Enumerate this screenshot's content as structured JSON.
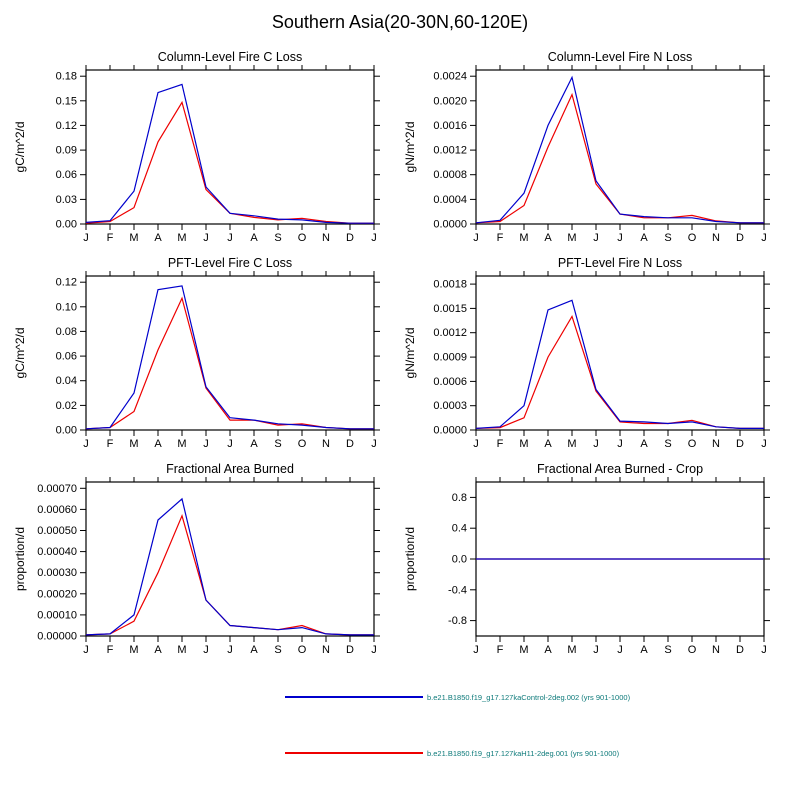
{
  "page_title": "Southern Asia(20-30N,60-120E)",
  "months": [
    "J",
    "F",
    "M",
    "A",
    "M",
    "J",
    "J",
    "A",
    "S",
    "O",
    "N",
    "D",
    "J"
  ],
  "legend": {
    "text_color": "#0d7a7a",
    "entries": [
      {
        "label": "b.e21.B1850.f19_g17.127kaControl-2deg.002 (yrs 901-1000)",
        "color": "#0000cc"
      },
      {
        "label": "b.e21.B1850.f19_g17.127kaH11-2deg.001 (yrs 901-1000)",
        "color": "#ee0000"
      }
    ]
  },
  "chart_data": [
    {
      "type": "line",
      "title": "Column-Level Fire C Loss",
      "xlabel": "",
      "ylabel": "gC/m^2/d",
      "categories": [
        "J",
        "F",
        "M",
        "A",
        "M",
        "J",
        "J",
        "A",
        "S",
        "O",
        "N",
        "D",
        "J"
      ],
      "ylim": [
        0,
        0.1875
      ],
      "ytick_values": [
        0,
        0.03,
        0.06,
        0.09,
        0.12,
        0.15,
        0.18
      ],
      "ytick_labels": [
        "0.00",
        "0.03",
        "0.06",
        "0.09",
        "0.12",
        "0.15",
        "0.18"
      ],
      "series": [
        {
          "name": "b.e21.B1850.f19_g17.127kaControl-2deg.002 (yrs 901-1000)",
          "color": "#0000cc",
          "values": [
            0.002,
            0.004,
            0.04,
            0.16,
            0.17,
            0.045,
            0.013,
            0.01,
            0.006,
            0.005,
            0.002,
            0.001,
            0.001
          ]
        },
        {
          "name": "b.e21.B1850.f19_g17.127kaH11-2deg.001 (yrs 901-1000)",
          "color": "#ee0000",
          "values": [
            0.001,
            0.003,
            0.02,
            0.1,
            0.148,
            0.042,
            0.013,
            0.008,
            0.005,
            0.007,
            0.003,
            0.001,
            0.001
          ]
        }
      ]
    },
    {
      "type": "line",
      "title": "Column-Level Fire N Loss",
      "xlabel": "",
      "ylabel": "gN/m^2/d",
      "categories": [
        "J",
        "F",
        "M",
        "A",
        "M",
        "J",
        "J",
        "A",
        "S",
        "O",
        "N",
        "D",
        "J"
      ],
      "ylim": [
        0,
        0.0025
      ],
      "ytick_values": [
        0,
        0.0004,
        0.0008,
        0.0012,
        0.0016,
        0.002,
        0.0024
      ],
      "ytick_labels": [
        "0.0000",
        "0.0004",
        "0.0008",
        "0.0012",
        "0.0016",
        "0.0020",
        "0.0024"
      ],
      "series": [
        {
          "name": "b.e21.B1850.f19_g17.127kaControl-2deg.002 (yrs 901-1000)",
          "color": "#0000cc",
          "values": [
            2e-05,
            6e-05,
            0.0005,
            0.0016,
            0.00238,
            0.0007,
            0.00016,
            0.00012,
            0.0001,
            0.0001,
            4e-05,
            2e-05,
            2e-05
          ]
        },
        {
          "name": "b.e21.B1850.f19_g17.127kaH11-2deg.001 (yrs 901-1000)",
          "color": "#ee0000",
          "values": [
            2e-05,
            4e-05,
            0.0003,
            0.00125,
            0.0021,
            0.00065,
            0.00016,
            0.0001,
            0.0001,
            0.00014,
            5e-05,
            2e-05,
            2e-05
          ]
        }
      ]
    },
    {
      "type": "line",
      "title": "PFT-Level Fire C Loss",
      "xlabel": "",
      "ylabel": "gC/m^2/d",
      "categories": [
        "J",
        "F",
        "M",
        "A",
        "M",
        "J",
        "J",
        "A",
        "S",
        "O",
        "N",
        "D",
        "J"
      ],
      "ylim": [
        0,
        0.125
      ],
      "ytick_values": [
        0,
        0.02,
        0.04,
        0.06,
        0.08,
        0.1,
        0.12
      ],
      "ytick_labels": [
        "0.00",
        "0.02",
        "0.04",
        "0.06",
        "0.08",
        "0.10",
        "0.12"
      ],
      "series": [
        {
          "name": "b.e21.B1850.f19_g17.127kaControl-2deg.002 (yrs 901-1000)",
          "color": "#0000cc",
          "values": [
            0.001,
            0.002,
            0.03,
            0.114,
            0.117,
            0.035,
            0.01,
            0.008,
            0.005,
            0.004,
            0.002,
            0.001,
            0.001
          ]
        },
        {
          "name": "b.e21.B1850.f19_g17.127kaH11-2deg.001 (yrs 901-1000)",
          "color": "#ee0000",
          "values": [
            0.001,
            0.002,
            0.015,
            0.065,
            0.107,
            0.034,
            0.008,
            0.008,
            0.004,
            0.005,
            0.002,
            0.001,
            0.001
          ]
        }
      ]
    },
    {
      "type": "line",
      "title": "PFT-Level Fire N Loss",
      "xlabel": "",
      "ylabel": "gN/m^2/d",
      "categories": [
        "J",
        "F",
        "M",
        "A",
        "M",
        "J",
        "J",
        "A",
        "S",
        "O",
        "N",
        "D",
        "J"
      ],
      "ylim": [
        0,
        0.0019
      ],
      "ytick_values": [
        0,
        0.0003,
        0.0006,
        0.0009,
        0.0012,
        0.0015,
        0.0018
      ],
      "ytick_labels": [
        "0.0000",
        "0.0003",
        "0.0006",
        "0.0009",
        "0.0012",
        "0.0015",
        "0.0018"
      ],
      "series": [
        {
          "name": "b.e21.B1850.f19_g17.127kaControl-2deg.002 (yrs 901-1000)",
          "color": "#0000cc",
          "values": [
            2e-05,
            4e-05,
            0.0003,
            0.00148,
            0.0016,
            0.0005,
            0.00011,
            0.0001,
            8e-05,
            0.0001,
            4e-05,
            2e-05,
            2e-05
          ]
        },
        {
          "name": "b.e21.B1850.f19_g17.127kaH11-2deg.001 (yrs 901-1000)",
          "color": "#ee0000",
          "values": [
            2e-05,
            3e-05,
            0.00015,
            0.0009,
            0.0014,
            0.00048,
            0.0001,
            8e-05,
            8e-05,
            0.00012,
            4e-05,
            2e-05,
            2e-05
          ]
        }
      ]
    },
    {
      "type": "line",
      "title": "Fractional Area Burned",
      "xlabel": "",
      "ylabel": "proportion/d",
      "categories": [
        "J",
        "F",
        "M",
        "A",
        "M",
        "J",
        "J",
        "A",
        "S",
        "O",
        "N",
        "D",
        "J"
      ],
      "ylim": [
        0,
        0.00073
      ],
      "ytick_values": [
        0,
        0.0001,
        0.0002,
        0.0003,
        0.0004,
        0.0005,
        0.0006,
        0.0007
      ],
      "ytick_labels": [
        "0.00000",
        "0.00010",
        "0.00020",
        "0.00030",
        "0.00040",
        "0.00050",
        "0.00060",
        "0.00070"
      ],
      "series": [
        {
          "name": "b.e21.B1850.f19_g17.127kaControl-2deg.002 (yrs 901-1000)",
          "color": "#0000cc",
          "values": [
            5e-06,
            1e-05,
            0.0001,
            0.00055,
            0.00065,
            0.00017,
            5e-05,
            4e-05,
            3e-05,
            4e-05,
            1e-05,
            5e-06,
            5e-06
          ]
        },
        {
          "name": "b.e21.B1850.f19_g17.127kaH11-2deg.001 (yrs 901-1000)",
          "color": "#ee0000",
          "values": [
            5e-06,
            1e-05,
            7e-05,
            0.0003,
            0.00057,
            0.00017,
            5e-05,
            4e-05,
            3e-05,
            5e-05,
            1e-05,
            5e-06,
            5e-06
          ]
        }
      ]
    },
    {
      "type": "line",
      "title": "Fractional Area Burned - Crop",
      "xlabel": "",
      "ylabel": "proportion/d",
      "categories": [
        "J",
        "F",
        "M",
        "A",
        "M",
        "J",
        "J",
        "A",
        "S",
        "O",
        "N",
        "D",
        "J"
      ],
      "ylim": [
        -1,
        1
      ],
      "ytick_values": [
        -0.8,
        -0.4,
        0,
        0.4,
        0.8
      ],
      "ytick_labels": [
        "-0.8",
        "-0.4",
        "0.0",
        "0.4",
        "0.8"
      ],
      "series": [
        {
          "name": "b.e21.B1850.f19_g17.127kaControl-2deg.002 (yrs 901-1000)",
          "color": "#0000cc",
          "values": [
            0,
            0,
            0,
            0,
            0,
            0,
            0,
            0,
            0,
            0,
            0,
            0,
            0
          ]
        },
        {
          "name": "b.e21.B1850.f19_g17.127kaH11-2deg.001 (yrs 901-1000)",
          "color": "#ee0000",
          "values": [
            0,
            0,
            0,
            0,
            0,
            0,
            0,
            0,
            0,
            0,
            0,
            0,
            0
          ]
        }
      ]
    }
  ]
}
